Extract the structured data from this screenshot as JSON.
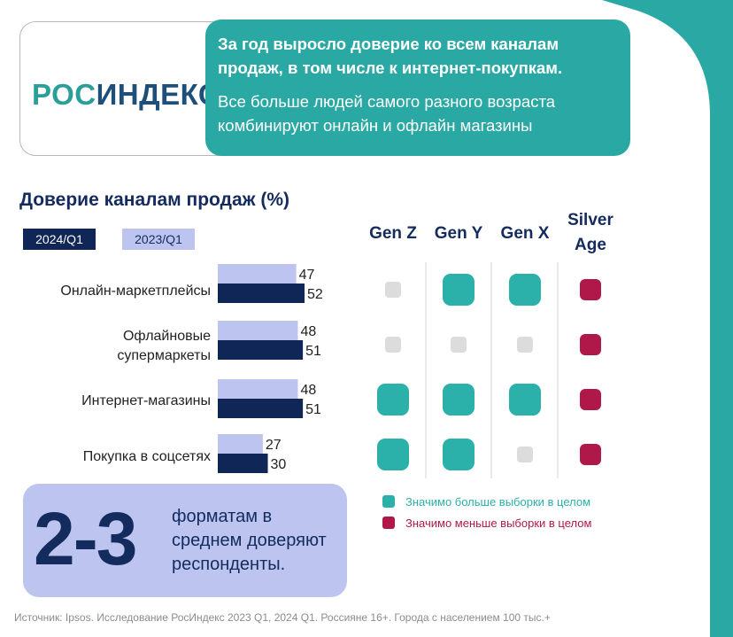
{
  "header": {
    "brand_part1": "РОС",
    "brand_part2": "ИНДЕКС",
    "title": "За год выросло доверие ко всем каналам продаж, в том числе к интернет-покупкам.",
    "subtitle": "Все больше людей самого разного возраста комбинируют онлайн и офлайн магазины"
  },
  "chart_data": {
    "type": "bar",
    "title": "Доверие каналам продаж (%)",
    "categories": [
      "Онлайн-маркетплейсы",
      "Офлайновые супермаркеты",
      "Интернет-магазины",
      "Покупка в соцсетях"
    ],
    "series": [
      {
        "name": "2023/Q1",
        "values": [
          47,
          48,
          48,
          27
        ],
        "color": "#bcc4ef"
      },
      {
        "name": "2024/Q1",
        "values": [
          52,
          51,
          51,
          30
        ],
        "color": "#0f2657"
      }
    ],
    "xlim": [
      0,
      52
    ]
  },
  "legend": {
    "label_2024": "2024/Q1",
    "label_2023": "2023/Q1"
  },
  "matrix": {
    "headers": [
      "Gen Z",
      "Gen Y",
      "Gen X",
      "Silver Age"
    ],
    "rows": [
      [
        "neutral",
        "more",
        "more",
        "less"
      ],
      [
        "neutral",
        "neutral",
        "neutral",
        "less"
      ],
      [
        "more",
        "more",
        "more",
        "less"
      ],
      [
        "more",
        "more",
        "neutral",
        "less"
      ]
    ],
    "legend_more": "Значимо больше выборки в целом",
    "legend_less": "Значимо меньше выборки в целом",
    "colors": {
      "more": "#2bb0aa",
      "less": "#b0184a",
      "neutral": "#dcdcdc"
    }
  },
  "highlight": {
    "number": "2-3",
    "text": "форматам в среднем доверяют респонденты."
  },
  "source": "Источник: Ipsos. Исследование РосИндекс 2023 Q1, 2024 Q1. Россияне 16+. Города с населением 100 тыс.+",
  "colors": {
    "teal": "#2aa8a4",
    "navy": "#0f2657",
    "lavender": "#bcc4ef"
  }
}
